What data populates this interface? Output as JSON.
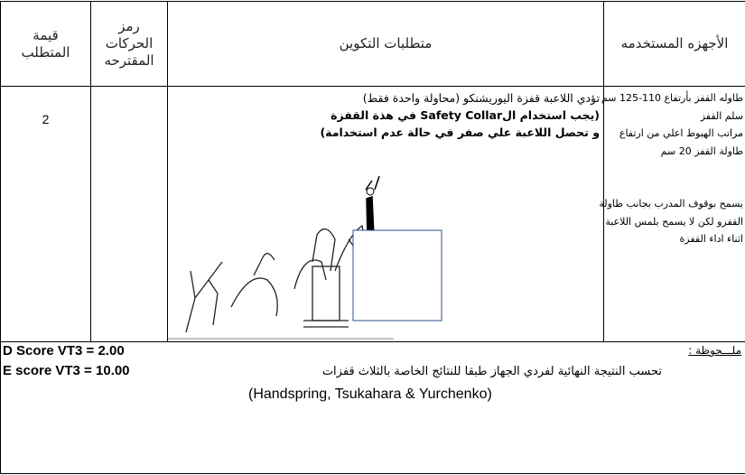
{
  "header": {
    "columns": [
      [
        "قيمة",
        "المتطلب"
      ],
      [
        "رمز",
        "الحركات",
        "المقترحه"
      ],
      [
        "متطلبات التكوين"
      ],
      [
        "الأجهزه المستخدمه"
      ]
    ]
  },
  "row": {
    "value": "2",
    "requirements": [
      "تؤدي اللاعبة قفزة اليوريشنكو  (محاولة واحدة فقط)",
      "(يجب استخدام الSafety Collar في هذة القفزة",
      "و تحصل اللاعبة علي صفر في حالة عدم استخدامة)"
    ],
    "equipment": [
      "طاوله القفز بأرتفاع 110-125 سم",
      "سلم القفز",
      "مراتب الهبوط اعلي من ارتفاع",
      "طاولة القفز 20 سم",
      "يسمح بوقوف المدرب بجانب طاولة",
      "القفزو لكن لا يسمح  بلمس اللاعبة",
      "اثناء اداء القفزة"
    ]
  },
  "note": {
    "label": "ملـــحوظة :",
    "text": "تحسب النتيجة النهائية لفردي الجهاز طبقا للنتائج الخاصة بالثلاث قفزات",
    "vaults": "(Handspring, Tsukahara & Yurchenko)"
  },
  "scores": [
    "D Score VT3 = 2.00",
    "E score VT3 = 10.00"
  ]
}
